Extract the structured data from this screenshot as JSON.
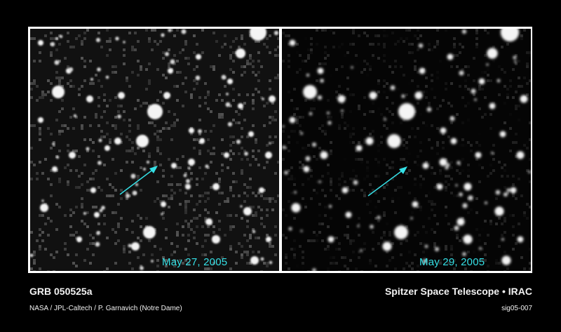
{
  "image": {
    "title": "GRB 050525a",
    "credit": "NASA / JPL-Caltech / P. Garnavich (Notre Dame)",
    "mission": "Spitzer Space Telescope • IRAC",
    "reference": "sig05-007"
  },
  "panels": [
    {
      "date": "May 27, 2005"
    },
    {
      "date": "May 29, 2005"
    }
  ],
  "colors": {
    "accent": "#35e0e6",
    "background": "#000000",
    "frame": "#ffffff"
  },
  "icons": {
    "marker": "arrow-icon"
  }
}
